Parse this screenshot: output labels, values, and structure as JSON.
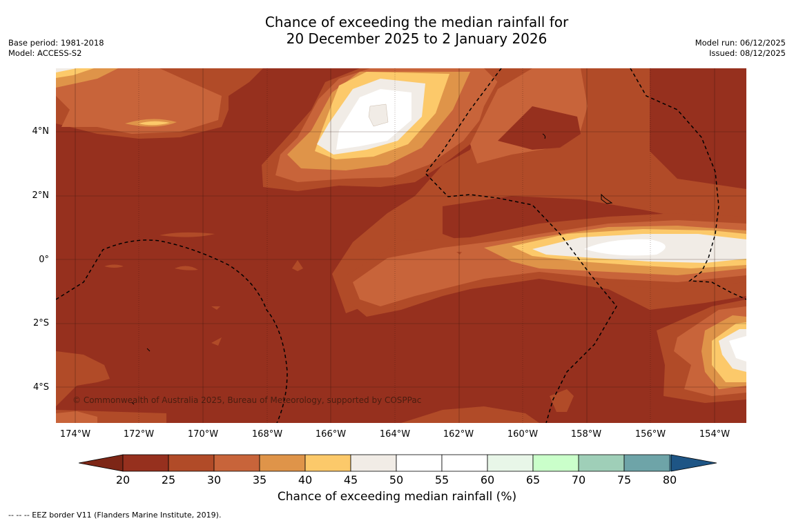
{
  "title": {
    "line1": "Chance of exceeding the median rainfall for",
    "line2": "20 December 2025 to 2 January 2026"
  },
  "meta": {
    "base_period": "Base period: 1981-2018",
    "model": "Model: ACCESS-S2",
    "model_run": "Model run: 06/12/2025",
    "issued": "Issued: 08/12/2025"
  },
  "map": {
    "x_ticks": [
      "174°W",
      "172°W",
      "170°W",
      "168°W",
      "166°W",
      "164°W",
      "162°W",
      "160°W",
      "158°W",
      "156°W",
      "154°W"
    ],
    "y_ticks": [
      "4°N",
      "2°N",
      "0°",
      "2°S",
      "4°S"
    ],
    "credit": "© Commonwealth of Australia 2025, Bureau of Meteorology, supported by COSPPac"
  },
  "colorbar": {
    "labels": [
      "20",
      "25",
      "30",
      "35",
      "40",
      "45",
      "50",
      "55",
      "60",
      "65",
      "70",
      "75",
      "80"
    ],
    "colors": [
      "#96301e",
      "#b14b28",
      "#c8643a",
      "#df9449",
      "#fcc96a",
      "#f1ece6",
      "#ffffff",
      "#ffffff",
      "#e8f6e8",
      "#caffca",
      "#9fcfb8",
      "#6ea4a8",
      "#3e7b9b"
    ],
    "under_color": "#7d2616",
    "over_color": "#1e5585",
    "title": "Chance of exceeding median rainfall (%)"
  },
  "legend": {
    "eez": "--  --  -- EEZ border V11 (Flanders Marine Institute, 2019)."
  }
}
